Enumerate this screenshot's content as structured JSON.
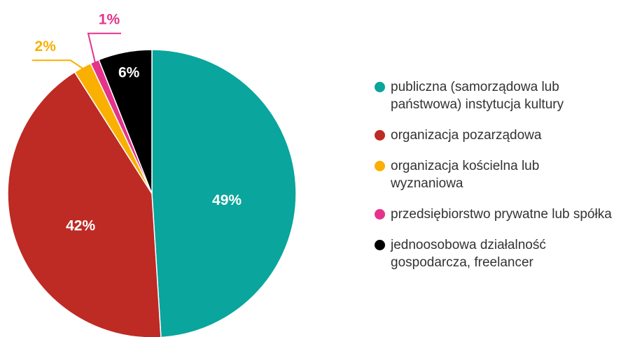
{
  "chart_data": {
    "type": "pie",
    "categories": [
      "publiczna (samorządowa lub państwowa) instytucja kultury",
      "organizacja pozarządowa",
      "organizacja kościelna lub wyznaniowa",
      "przedsiębiorstwo prywatne lub spółka",
      "jednoosobowa działalność gospodarcza, freelancer"
    ],
    "values": [
      49,
      42,
      2,
      1,
      6
    ],
    "value_labels": [
      "49%",
      "42%",
      "2%",
      "1%",
      "6%"
    ],
    "colors": [
      "#0aa59c",
      "#be2a24",
      "#f9b000",
      "#e5338b",
      "#000000"
    ],
    "legend": "right"
  }
}
